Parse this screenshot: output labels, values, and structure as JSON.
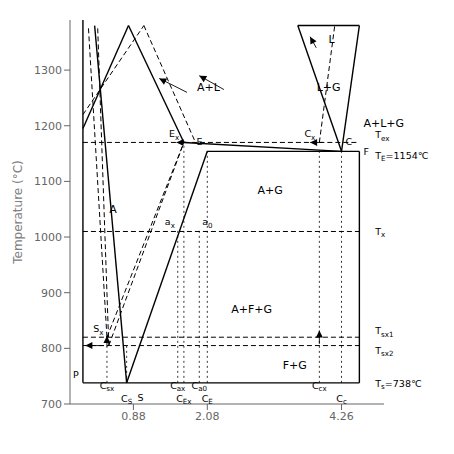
{
  "chart_data": {
    "type": "line",
    "color": "#000000",
    "ylabel": "Temperature (°C)",
    "xlim": [
      -0.15,
      4.95
    ],
    "ylim": [
      700,
      1390
    ],
    "xticks": [
      0.88,
      2.08,
      4.26
    ],
    "yticks": [
      700,
      800,
      900,
      1000,
      1100,
      1200,
      1300
    ],
    "grid": false,
    "series": [
      {
        "x": [
          2.08,
          4.55
        ],
        "values": [
          1154,
          1154
        ],
        "line_style": "solid"
      },
      {
        "x": [
          0.06,
          4.55
        ],
        "values": [
          738,
          738
        ],
        "line_style": "solid"
      },
      {
        "x": [
          0.06,
          0.06
        ],
        "values": [
          738,
          1390
        ],
        "line_style": "solid"
      },
      {
        "x": [
          4.55,
          4.55
        ],
        "values": [
          738,
          1154
        ],
        "line_style": "solid"
      },
      {
        "x": [
          0.25,
          0.77
        ],
        "values": [
          1380,
          738
        ],
        "line_style": "solid"
      },
      {
        "x": [
          0.77,
          2.08
        ],
        "values": [
          738,
          1154
        ],
        "line_style": "solid"
      },
      {
        "x": [
          0.06,
          0.8
        ],
        "values": [
          1195,
          1380
        ],
        "line_style": "solid"
      },
      {
        "x": [
          0.8,
          1.7
        ],
        "values": [
          1380,
          1170
        ],
        "line_style": "solid"
      },
      {
        "x": [
          1.7,
          4.26
        ],
        "values": [
          1170,
          1154
        ],
        "line_style": "solid"
      },
      {
        "x": [
          4.26,
          4.55
        ],
        "values": [
          1154,
          1380
        ],
        "line_style": "solid"
      },
      {
        "x": [
          3.55,
          4.55
        ],
        "values": [
          1380,
          1380
        ],
        "line_style": "solid"
      },
      {
        "x": [
          3.55,
          4.26
        ],
        "values": [
          1380,
          1154
        ],
        "line_style": "solid"
      },
      {
        "x": [
          0.15,
          0.45
        ],
        "values": [
          1375,
          820
        ],
        "line_style": "dashed"
      },
      {
        "x": [
          0.45,
          1.7
        ],
        "values": [
          820,
          1170
        ],
        "line_style": "dashed"
      },
      {
        "x": [
          0.3,
          0.48
        ],
        "values": [
          1375,
          805
        ],
        "line_style": "dashed"
      },
      {
        "x": [
          0.48,
          1.7
        ],
        "values": [
          805,
          1170
        ],
        "line_style": "dashed"
      },
      {
        "x": [
          0.06,
          1.05
        ],
        "values": [
          1220,
          1380
        ],
        "line_style": "dashed"
      },
      {
        "x": [
          1.05,
          1.88
        ],
        "values": [
          1380,
          1172
        ],
        "line_style": "dashed"
      },
      {
        "x": [
          1.7,
          3.9
        ],
        "values": [
          1170,
          1170
        ],
        "line_style": "dashed"
      },
      {
        "x": [
          3.9,
          4.55
        ],
        "values": [
          1170,
          1170
        ],
        "line_style": "dashed"
      },
      {
        "x": [
          0.06,
          1.7
        ],
        "values": [
          1170,
          1170
        ],
        "line_style": "dashed"
      },
      {
        "x": [
          3.9,
          4.15
        ],
        "values": [
          1170,
          1380
        ],
        "line_style": "dashed"
      },
      {
        "x": [
          0.06,
          4.55
        ],
        "values": [
          1010,
          1010
        ],
        "line_style": "dashed"
      },
      {
        "x": [
          0.06,
          4.55
        ],
        "values": [
          820,
          820
        ],
        "line_style": "dashed"
      },
      {
        "x": [
          0.06,
          4.55
        ],
        "values": [
          805,
          805
        ],
        "line_style": "dashed"
      },
      {
        "x": [
          0.45,
          0.45
        ],
        "values": [
          738,
          825
        ],
        "line_style": "dotted"
      },
      {
        "x": [
          0.77,
          0.77
        ],
        "values": [
          738,
          810
        ],
        "line_style": "dotted"
      },
      {
        "x": [
          1.6,
          1.6
        ],
        "values": [
          738,
          1015
        ],
        "line_style": "dotted"
      },
      {
        "x": [
          1.7,
          1.7
        ],
        "values": [
          738,
          1175
        ],
        "line_style": "dotted"
      },
      {
        "x": [
          1.95,
          1.95
        ],
        "values": [
          738,
          1015
        ],
        "line_style": "dotted"
      },
      {
        "x": [
          2.08,
          2.08
        ],
        "values": [
          738,
          1159
        ],
        "line_style": "dotted"
      },
      {
        "x": [
          3.9,
          3.9
        ],
        "values": [
          738,
          1159
        ],
        "line_style": "dotted"
      },
      {
        "x": [
          4.26,
          4.26
        ],
        "values": [
          738,
          1159
        ],
        "line_style": "dotted"
      },
      {
        "x": [
          1.75,
          1.3
        ],
        "values": [
          1260,
          1285
        ],
        "line_style": "solid",
        "marker": "arrow"
      },
      {
        "x": [
          2.35,
          1.95
        ],
        "values": [
          1265,
          1290
        ],
        "line_style": "solid",
        "marker": "arrow"
      },
      {
        "x": [
          3.85,
          3.75
        ],
        "values": [
          1340,
          1360
        ],
        "line_style": "solid",
        "marker": "arrow"
      },
      {
        "x": [
          3.95,
          3.75
        ],
        "values": [
          1170,
          1170
        ],
        "line_style": "solid",
        "marker": "arrow"
      },
      {
        "x": [
          1.75,
          1.58
        ],
        "values": [
          1170,
          1170
        ],
        "line_style": "solid",
        "marker": "arrow"
      },
      {
        "x": [
          3.9,
          3.9
        ],
        "values": [
          808,
          832
        ],
        "line_style": "solid",
        "marker": "arrow"
      },
      {
        "x": [
          0.45,
          0.45
        ],
        "values": [
          803,
          822
        ],
        "line_style": "solid",
        "marker": "arrow"
      },
      {
        "x": [
          0.4,
          0.1
        ],
        "values": [
          805,
          805
        ],
        "line_style": "solid",
        "marker": "arrow"
      }
    ],
    "annotations": [
      {
        "text": "A",
        "x": 0.55,
        "y": 1050
      },
      {
        "text": "A+G",
        "x": 3.1,
        "y": 1085
      },
      {
        "text": "A+F+G",
        "x": 2.8,
        "y": 870
      },
      {
        "text": "F+G",
        "x": 3.5,
        "y": 770
      },
      {
        "text": "A+L",
        "x": 2.1,
        "y": 1270
      },
      {
        "text": "L+G",
        "x": 4.05,
        "y": 1270
      },
      {
        "text": "L",
        "x": 4.1,
        "y": 1355
      },
      {
        "text": "A+L+G",
        "x": 4.6,
        "y": 1183
      },
      {
        "text": "E",
        "x": 2.02,
        "y": 1162
      },
      {
        "text": "C",
        "x": 4.31,
        "y": 1162
      },
      {
        "text": "F",
        "x": 4.6,
        "y": 1154
      },
      {
        "text": "P",
        "x": 0.01,
        "y": 743
      },
      {
        "text": "S",
        "x": 0.8,
        "y": 718
      },
      {
        "text": "E",
        "subscript": "x",
        "x": 1.64,
        "y": 1176
      },
      {
        "text": "S",
        "subscript": "x",
        "x": 0.41,
        "y": 826
      },
      {
        "text": "C",
        "subscript": "x",
        "x": 3.85,
        "y": 1176
      },
      {
        "text": "a",
        "subscript": "x",
        "x": 1.57,
        "y": 1018
      },
      {
        "text": "a",
        "subscript": "0",
        "x": 1.98,
        "y": 1018
      },
      {
        "text": "T",
        "subscript": "ex",
        "x": 4.63,
        "y": 1174
      },
      {
        "text": "T",
        "subscript": "E",
        "suffix": "=1154℃",
        "x": 4.63,
        "y": 1152
      },
      {
        "text": "T",
        "subscript": "x",
        "x": 4.63,
        "y": 1010
      },
      {
        "text": "T",
        "subscript": "sx1",
        "x": 4.63,
        "y": 822
      },
      {
        "text": "T",
        "subscript": "sx2",
        "x": 4.63,
        "y": 803
      },
      {
        "text": "T",
        "subscript": "s",
        "suffix": "=738℃",
        "x": 4.63,
        "y": 738
      },
      {
        "text": "C",
        "subscript": "sx",
        "x": 0.45,
        "y": 716
      },
      {
        "text": "C",
        "subscript": "S",
        "x": 0.77,
        "y": 716
      },
      {
        "text": "C",
        "subscript": "ax",
        "x": 1.6,
        "y": 716
      },
      {
        "text": "C",
        "subscript": "Ex",
        "x": 1.7,
        "y": 716
      },
      {
        "text": "C",
        "subscript": "a0",
        "x": 1.95,
        "y": 716
      },
      {
        "text": "C",
        "subscript": "E",
        "x": 2.08,
        "y": 716
      },
      {
        "text": "C",
        "subscript": "cx",
        "x": 3.9,
        "y": 716
      },
      {
        "text": "C",
        "subscript": "c",
        "x": 4.26,
        "y": 716
      }
    ]
  }
}
